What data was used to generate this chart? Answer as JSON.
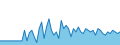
{
  "values": [
    5,
    5,
    5,
    5,
    5,
    5,
    5,
    5,
    5,
    5,
    18,
    5,
    15,
    18,
    10,
    3,
    20,
    28,
    8,
    22,
    32,
    18,
    12,
    16,
    8,
    30,
    20,
    24,
    20,
    10,
    20,
    16,
    22,
    16,
    14,
    20,
    18,
    16,
    18,
    12,
    20,
    18,
    14,
    12,
    16,
    14,
    18,
    16,
    14,
    16
  ],
  "line_color": "#1a7abf",
  "fill_color": "#7ec8e8",
  "background_color": "#ffffff",
  "ylim": [
    0,
    55
  ]
}
